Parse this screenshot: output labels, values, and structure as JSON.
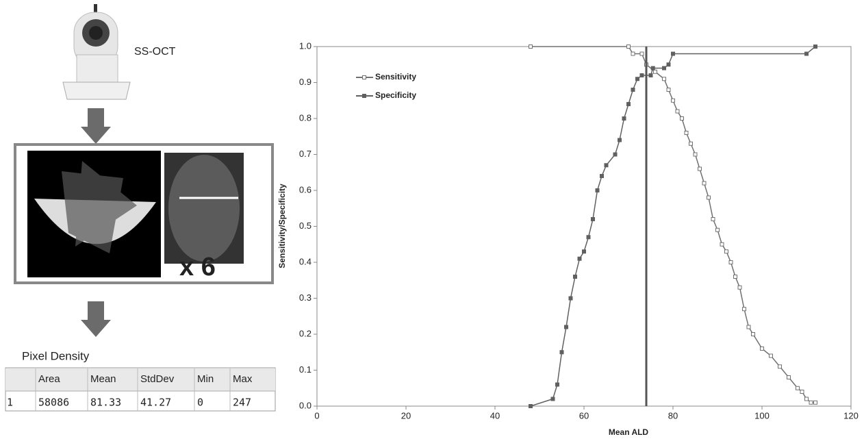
{
  "diagram": {
    "device_label": "SS-OCT",
    "multiplier": "x 6",
    "table_title": "Pixel Density",
    "table": {
      "header": [
        "",
        "Area",
        "Mean",
        "StdDev",
        "Min",
        "Max"
      ],
      "rows": [
        [
          "1",
          "58086",
          "81.33",
          "41.27",
          "0",
          "247"
        ]
      ]
    }
  },
  "chart_data": {
    "type": "line",
    "x_label": "Mean ALD",
    "y_label": "Sensitivity/Specificity",
    "xlim": [
      0,
      120
    ],
    "xticks": [
      0,
      20,
      40,
      60,
      80,
      100,
      120
    ],
    "ylim": [
      0,
      1
    ],
    "yticks": [
      {
        "value": 0,
        "label": "0.0"
      },
      0.1,
      0.2,
      0.3,
      0.4,
      0.5,
      0.6,
      0.7,
      0.8,
      0.9,
      {
        "value": 1,
        "label": "1.0"
      }
    ],
    "grid": false,
    "legend": "upper-left",
    "cutoff_x": 74,
    "series": [
      {
        "name": "Sensitivity",
        "color": "#707070",
        "marker": "open-square",
        "x": [
          48,
          70,
          71,
          73,
          74,
          76,
          78,
          79,
          80,
          81,
          82,
          83,
          84,
          85,
          86,
          87,
          88,
          89,
          90,
          91,
          92,
          93,
          94,
          95,
          96,
          97,
          98,
          100,
          102,
          104,
          106,
          108,
          109,
          110,
          111,
          112
        ],
        "values": [
          1,
          1,
          0.98,
          0.98,
          0.95,
          0.93,
          0.91,
          0.88,
          0.85,
          0.82,
          0.8,
          0.76,
          0.73,
          0.7,
          0.66,
          0.62,
          0.58,
          0.52,
          0.49,
          0.45,
          0.43,
          0.4,
          0.36,
          0.33,
          0.27,
          0.22,
          0.2,
          0.16,
          0.14,
          0.11,
          0.08,
          0.05,
          0.04,
          0.02,
          0.01,
          0.01
        ]
      },
      {
        "name": "Specificity",
        "color": "#606060",
        "marker": "filled-square",
        "x": [
          48,
          53,
          54,
          55,
          56,
          57,
          58,
          59,
          60,
          61,
          62,
          63,
          64,
          65,
          67,
          68,
          69,
          70,
          71,
          72,
          73,
          75,
          75.5,
          78,
          79,
          80,
          110,
          112
        ],
        "values": [
          0,
          0.02,
          0.06,
          0.15,
          0.22,
          0.3,
          0.36,
          0.41,
          0.43,
          0.47,
          0.52,
          0.6,
          0.64,
          0.67,
          0.7,
          0.74,
          0.8,
          0.84,
          0.88,
          0.91,
          0.92,
          0.92,
          0.94,
          0.94,
          0.95,
          0.98,
          0.98,
          1
        ]
      }
    ]
  }
}
